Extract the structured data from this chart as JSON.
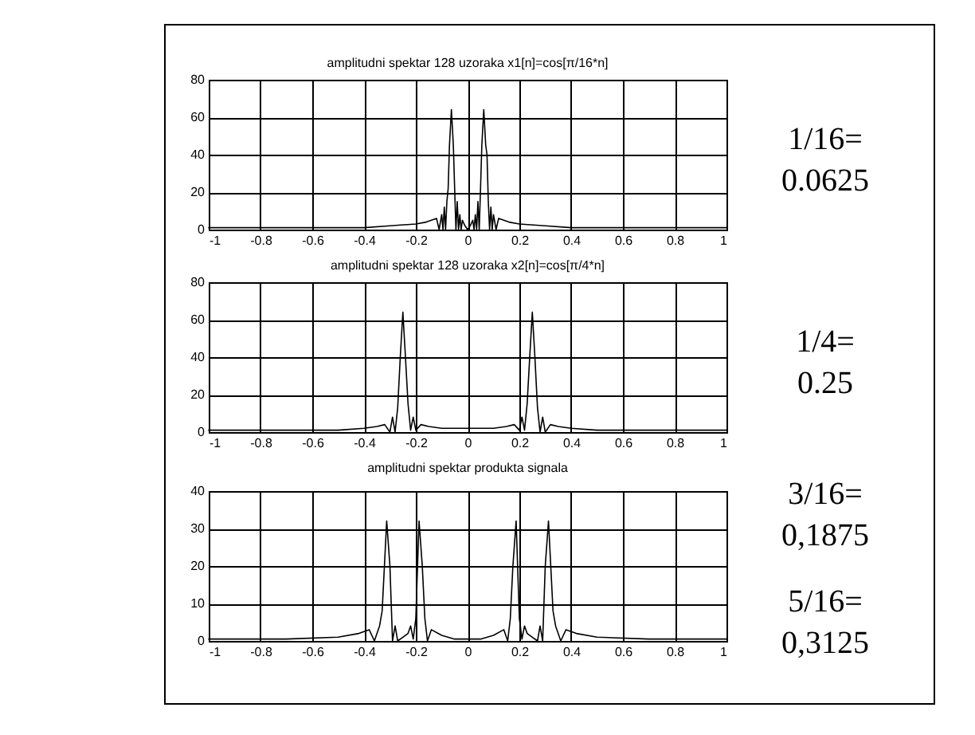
{
  "chart_data": [
    {
      "type": "line",
      "title": "amplitudni spektar 128 uzoraka x1[n]=cos[π/16*n]",
      "xlim": [
        -1,
        1
      ],
      "xticks": [
        -1,
        -0.8,
        -0.6,
        -0.4,
        -0.2,
        0,
        0.2,
        0.4,
        0.6,
        0.8,
        1
      ],
      "ylim": [
        0,
        80
      ],
      "yticks": [
        0,
        20,
        40,
        60,
        80
      ],
      "grid": true,
      "annotations": [
        "1/16=\n0.0625"
      ],
      "series": [
        {
          "color": "#000000",
          "x": [
            -1,
            -0.6,
            -0.4,
            -0.3,
            -0.2,
            -0.16,
            -0.14,
            -0.12,
            -0.11,
            -0.1,
            -0.095,
            -0.09,
            -0.085,
            -0.08,
            -0.075,
            -0.07,
            -0.0625,
            -0.055,
            -0.05,
            -0.045,
            -0.04,
            -0.035,
            -0.03,
            -0.025,
            -0.02,
            -0.01,
            0,
            0.01,
            0.02,
            0.025,
            0.03,
            0.035,
            0.04,
            0.045,
            0.05,
            0.055,
            0.0625,
            0.07,
            0.075,
            0.08,
            0.085,
            0.09,
            0.095,
            0.1,
            0.11,
            0.12,
            0.14,
            0.16,
            0.2,
            0.3,
            0.4,
            0.6,
            1
          ],
          "values": [
            1,
            1,
            1,
            2,
            3,
            4,
            5,
            6,
            0,
            8,
            0,
            12,
            0,
            15,
            22,
            45,
            64,
            45,
            22,
            0,
            15,
            0,
            8,
            0,
            5,
            2,
            0,
            2,
            5,
            0,
            8,
            0,
            15,
            0,
            22,
            45,
            64,
            45,
            40,
            15,
            0,
            12,
            0,
            8,
            0,
            6,
            5,
            4,
            3,
            2,
            1,
            1,
            1
          ]
        }
      ]
    },
    {
      "type": "line",
      "title": "amplitudni spektar 128 uzoraka x2[n]=cos[π/4*n]",
      "xlim": [
        -1,
        1
      ],
      "xticks": [
        -1,
        -0.8,
        -0.6,
        -0.4,
        -0.2,
        0,
        0.2,
        0.4,
        0.6,
        0.8,
        1
      ],
      "ylim": [
        0,
        80
      ],
      "yticks": [
        0,
        20,
        40,
        60,
        80
      ],
      "grid": true,
      "annotations": [
        "1/4=\n0.25"
      ],
      "series": [
        {
          "color": "#000000",
          "x": [
            -1,
            -0.7,
            -0.5,
            -0.4,
            -0.35,
            -0.32,
            -0.3,
            -0.29,
            -0.28,
            -0.27,
            -0.26,
            -0.25,
            -0.24,
            -0.23,
            -0.22,
            -0.21,
            -0.2,
            -0.18,
            -0.15,
            -0.1,
            0,
            0.1,
            0.15,
            0.18,
            0.2,
            0.21,
            0.22,
            0.23,
            0.24,
            0.25,
            0.26,
            0.27,
            0.28,
            0.29,
            0.3,
            0.32,
            0.35,
            0.4,
            0.5,
            0.7,
            1
          ],
          "values": [
            1,
            1,
            1,
            2,
            3,
            4,
            0,
            8,
            0,
            13,
            40,
            64,
            40,
            15,
            1,
            8,
            1,
            4,
            3,
            2,
            2,
            2,
            3,
            4,
            1,
            8,
            1,
            15,
            40,
            64,
            40,
            13,
            0,
            8,
            0,
            4,
            3,
            2,
            1,
            1,
            1
          ]
        }
      ]
    },
    {
      "type": "line",
      "title": "amplitudni spektar produkta signala",
      "xlim": [
        -1,
        1
      ],
      "xticks": [
        -1,
        -0.8,
        -0.6,
        -0.4,
        -0.2,
        0,
        0.2,
        0.4,
        0.6,
        0.8,
        1
      ],
      "ylim": [
        0,
        40
      ],
      "yticks": [
        0,
        10,
        20,
        30,
        40
      ],
      "grid": true,
      "annotations": [
        "3/16=\n0,1875",
        "5/16=\n0,3125"
      ],
      "series": [
        {
          "color": "#000000",
          "x": [
            -1,
            -0.7,
            -0.5,
            -0.42,
            -0.38,
            -0.36,
            -0.34,
            -0.33,
            -0.3125,
            -0.3,
            -0.29,
            -0.28,
            -0.27,
            -0.25,
            -0.23,
            -0.22,
            -0.21,
            -0.2,
            -0.1875,
            -0.175,
            -0.165,
            -0.155,
            -0.14,
            -0.1,
            -0.05,
            0,
            0.05,
            0.1,
            0.14,
            0.155,
            0.165,
            0.175,
            0.1875,
            0.2,
            0.21,
            0.22,
            0.23,
            0.25,
            0.27,
            0.28,
            0.29,
            0.3,
            0.3125,
            0.33,
            0.34,
            0.36,
            0.38,
            0.42,
            0.5,
            0.7,
            1
          ],
          "values": [
            0.5,
            0.5,
            1,
            2,
            3,
            0,
            4,
            8,
            32,
            20,
            0,
            4,
            0,
            1,
            2,
            4,
            0.5,
            6,
            32,
            20,
            6,
            0,
            3,
            1.5,
            0.5,
            0.5,
            0.5,
            1.5,
            3,
            0,
            6,
            20,
            32,
            6,
            0.5,
            4,
            2,
            1,
            0,
            4,
            0,
            20,
            32,
            8,
            4,
            0,
            3,
            2,
            1,
            0.5,
            0.5
          ]
        }
      ]
    }
  ]
}
